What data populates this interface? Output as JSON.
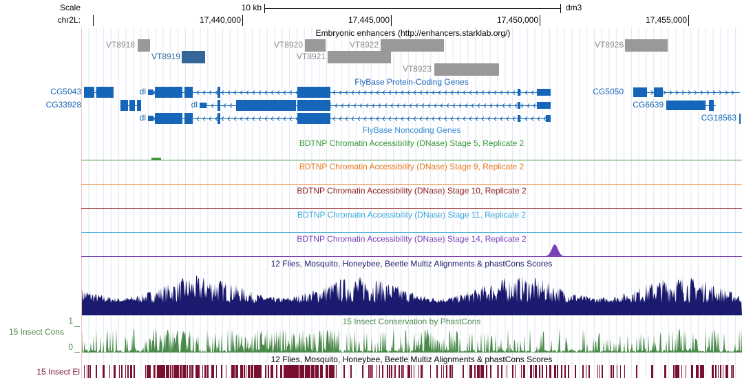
{
  "ruler": {
    "scale_label": "Scale",
    "chrom_label": "chr2L:",
    "scale_bar_label": "10 kb",
    "assembly": "dm3",
    "positions": [
      "17,440,000",
      "17,445,000",
      "17,450,000",
      "17,455,000"
    ]
  },
  "enhancers": {
    "title": "Embryonic enhancers (http://enhancers.starklab.org/)",
    "items": [
      "VT8918",
      "VT8919",
      "VT8920",
      "VT8922",
      "VT8921",
      "VT8923",
      "VT8926"
    ]
  },
  "protein_coding": {
    "title": "FlyBase Protein-Coding Genes",
    "genes": [
      "CG5043",
      "dl",
      "CG33928",
      "dl",
      "dl",
      "CG5050",
      "CG6639",
      "CG18563"
    ]
  },
  "noncoding": {
    "title": "FlyBase Noncoding Genes"
  },
  "dnase_tracks": [
    "BDTNP Chromatin Accessibility (DNase) Stage 5, Replicate 2",
    "BDTNP Chromatin Accessibility (DNase) Stage 9, Replicate 2",
    "BDTNP Chromatin Accessibility (DNase) Stage 10, Replicate 2",
    "BDTNP Chromatin Accessibility (DNase) Stage 11, Replicate 2",
    "BDTNP Chromatin Accessibility (DNase) Stage 14, Replicate 2"
  ],
  "multiz": {
    "title": "12 Flies, Mosquito, Honeybee, Beetle Multiz Alignments & phastCons Scores"
  },
  "conservation": {
    "title": "15 Insect Conservation by PhastCons",
    "side_label": "15 Insect Cons",
    "axis_max": "1",
    "axis_min": "0"
  },
  "elements": {
    "title": "12 Flies, Mosquito, Honeybee, Beetle Multiz Alignments & phastCons Scores",
    "side_label": "15 Insect El"
  }
}
